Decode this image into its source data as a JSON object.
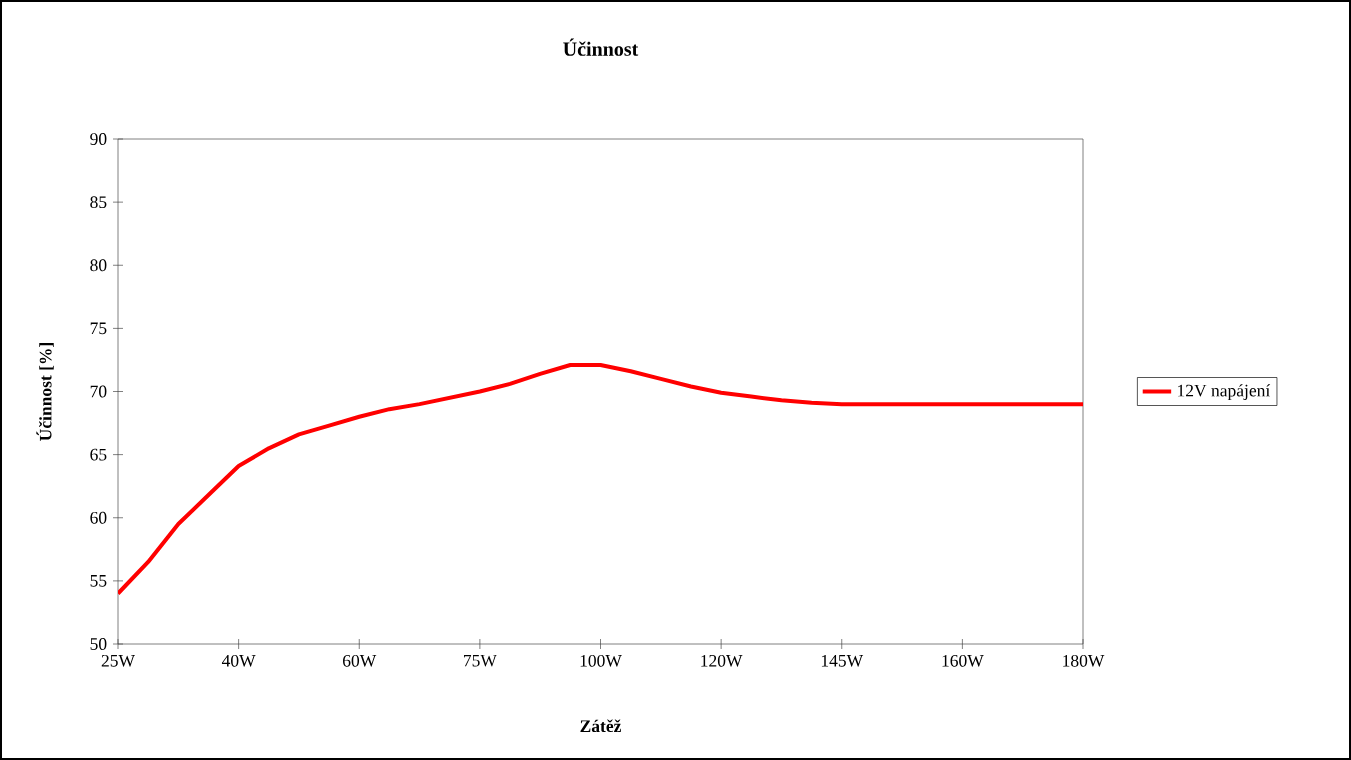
{
  "chart_data": {
    "type": "line",
    "title": "Účinnost",
    "xlabel": "Zátěž",
    "ylabel": "Účinnost [%]",
    "categories": [
      "25W",
      null,
      null,
      null,
      "40W",
      null,
      null,
      null,
      "60W",
      null,
      null,
      null,
      "75W",
      null,
      null,
      null,
      "100W",
      null,
      null,
      null,
      "120W",
      null,
      null,
      null,
      "145W",
      null,
      null,
      null,
      "160W",
      null,
      null,
      null,
      "180W"
    ],
    "ylim": [
      50,
      90
    ],
    "yticks": [
      50,
      55,
      60,
      65,
      70,
      75,
      80,
      85,
      90
    ],
    "legend": "right",
    "grid": false,
    "marker": "none",
    "line_style": "solid",
    "series": [
      {
        "name": "12V napájení",
        "color": "#ff0000",
        "values": [
          54,
          56.5,
          59.5,
          61.8,
          64.1,
          65.5,
          66.6,
          67.3,
          68,
          68.6,
          69,
          69.5,
          70,
          70.6,
          71.4,
          72.1,
          72.1,
          71.6,
          71,
          70.4,
          69.9,
          69.6,
          69.3,
          69.1,
          69,
          69,
          69,
          69,
          69,
          69,
          69,
          69,
          69
        ]
      }
    ]
  }
}
